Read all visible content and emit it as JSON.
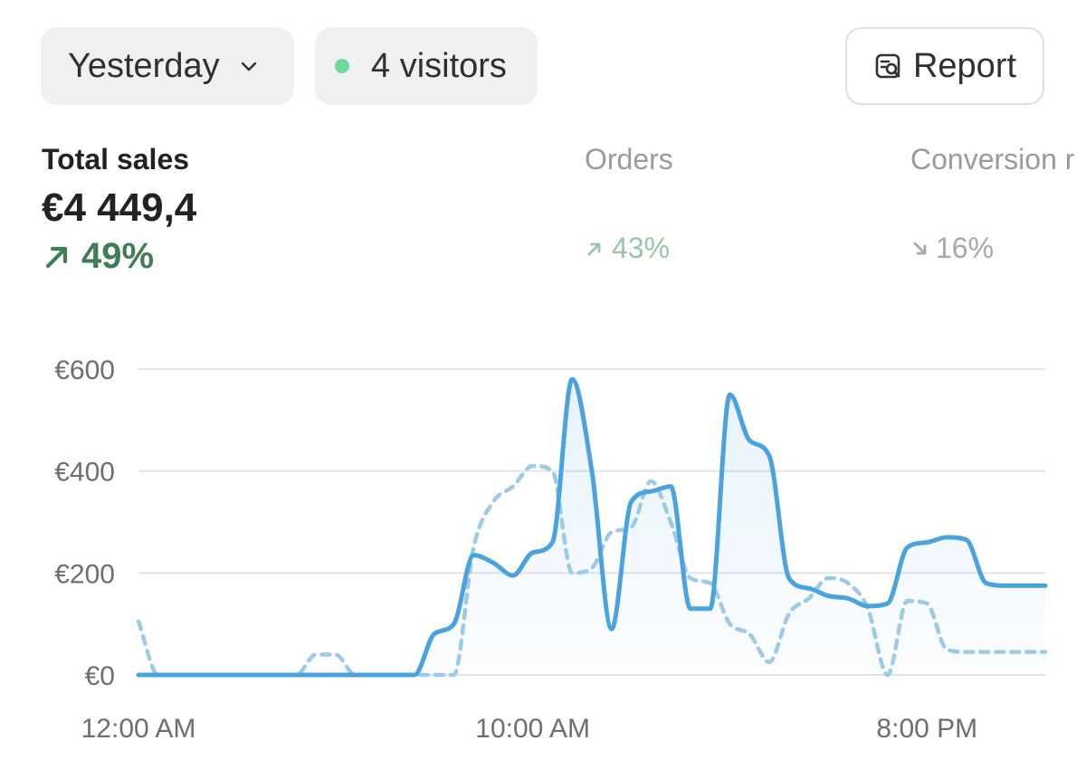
{
  "filters": {
    "date_range": "Yesterday",
    "visitors_label": "4 visitors",
    "report_label": "Report"
  },
  "metrics": {
    "total_sales": {
      "label": "Total sales",
      "value": "€4 449,4",
      "change": "49%",
      "direction": "up"
    },
    "orders": {
      "label": "Orders",
      "change": "43%",
      "direction": "up"
    },
    "conversion": {
      "label": "Conversion r",
      "change": "16%",
      "direction": "down"
    }
  },
  "colors": {
    "accent": "#4aa3df",
    "positive": "#3f7d55",
    "live_dot": "#6fd79a",
    "comparison": "#9ccbe6"
  },
  "chart_data": {
    "type": "line",
    "x": [
      0,
      0.5,
      1,
      1.5,
      2,
      2.5,
      3,
      3.5,
      4,
      4.5,
      5,
      5.5,
      6,
      6.5,
      7,
      7.5,
      8,
      8.5,
      9,
      9.5,
      10,
      10.5,
      11,
      11.5,
      12,
      12.5,
      13,
      13.5,
      14,
      14.5,
      15,
      15.5,
      16,
      16.5,
      17,
      17.5,
      18,
      18.5,
      19,
      19.5,
      20,
      20.5,
      21,
      21.5,
      22,
      22.5,
      23
    ],
    "x_tick_labels": [
      "12:00 AM",
      "10:00 AM",
      "8:00 PM"
    ],
    "x_tick_positions": [
      0,
      10,
      20
    ],
    "y_tick_labels": [
      "€0",
      "€200",
      "€400",
      "€600"
    ],
    "y_tick_values": [
      0,
      200,
      400,
      600
    ],
    "ylim": [
      0,
      600
    ],
    "series": [
      {
        "style": "solid",
        "values": [
          0,
          0,
          0,
          0,
          0,
          0,
          0,
          0,
          0,
          0,
          0,
          0,
          0,
          0,
          0,
          80,
          100,
          235,
          220,
          195,
          240,
          260,
          580,
          400,
          90,
          340,
          360,
          370,
          130,
          130,
          550,
          460,
          430,
          190,
          170,
          155,
          150,
          135,
          140,
          250,
          260,
          270,
          265,
          180,
          175,
          175,
          175
        ]
      },
      {
        "style": "dashed",
        "values": [
          105,
          0,
          0,
          0,
          0,
          0,
          0,
          0,
          0,
          40,
          40,
          0,
          0,
          0,
          0,
          0,
          0,
          250,
          340,
          370,
          410,
          400,
          200,
          210,
          280,
          290,
          380,
          300,
          190,
          180,
          100,
          80,
          25,
          120,
          150,
          190,
          180,
          130,
          0,
          145,
          140,
          50,
          45,
          45,
          45,
          45,
          45
        ]
      }
    ],
    "grid": true,
    "legend": "none"
  }
}
